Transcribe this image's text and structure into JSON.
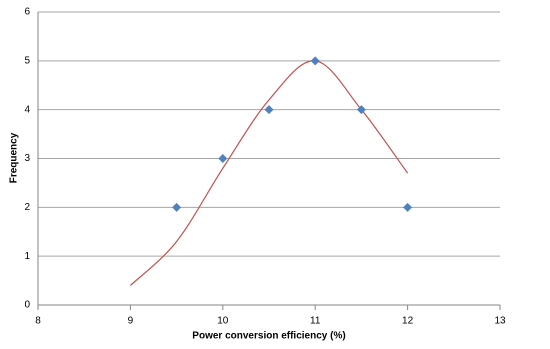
{
  "chart_data": {
    "type": "scatter",
    "x_label": "Power conversion efficiency (%)",
    "y_label": "Frequency",
    "xlim": [
      8,
      13
    ],
    "xticks": [
      8,
      9,
      10,
      11,
      12,
      13
    ],
    "ylim": [
      0,
      6
    ],
    "yticks": [
      0,
      1,
      2,
      3,
      4,
      5,
      6
    ],
    "grid": true,
    "series": [
      {
        "color": "#4f81bd",
        "marker": "diamond",
        "x": [
          9.5,
          10,
          10.5,
          11,
          11.5,
          12
        ],
        "values": [
          2,
          3,
          4,
          5,
          4,
          2
        ]
      },
      {
        "color": "#c0504d",
        "marker": "none",
        "smooth": true,
        "x": [
          9,
          9.5,
          10,
          10.5,
          11,
          11.5,
          12
        ],
        "values": [
          0.4,
          1.3,
          2.8,
          4.2,
          5.0,
          4.0,
          2.7
        ]
      }
    ]
  }
}
